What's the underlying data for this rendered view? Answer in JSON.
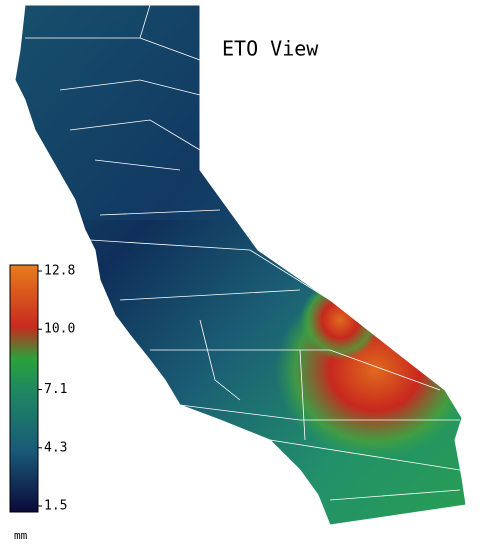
{
  "map": {
    "title": "ETO View"
  },
  "legend": {
    "ticks": [
      12.8,
      {
        "value": 10,
        "label": "10.0"
      },
      7.1,
      4.3,
      1.5
    ],
    "unit": "mm"
  }
}
